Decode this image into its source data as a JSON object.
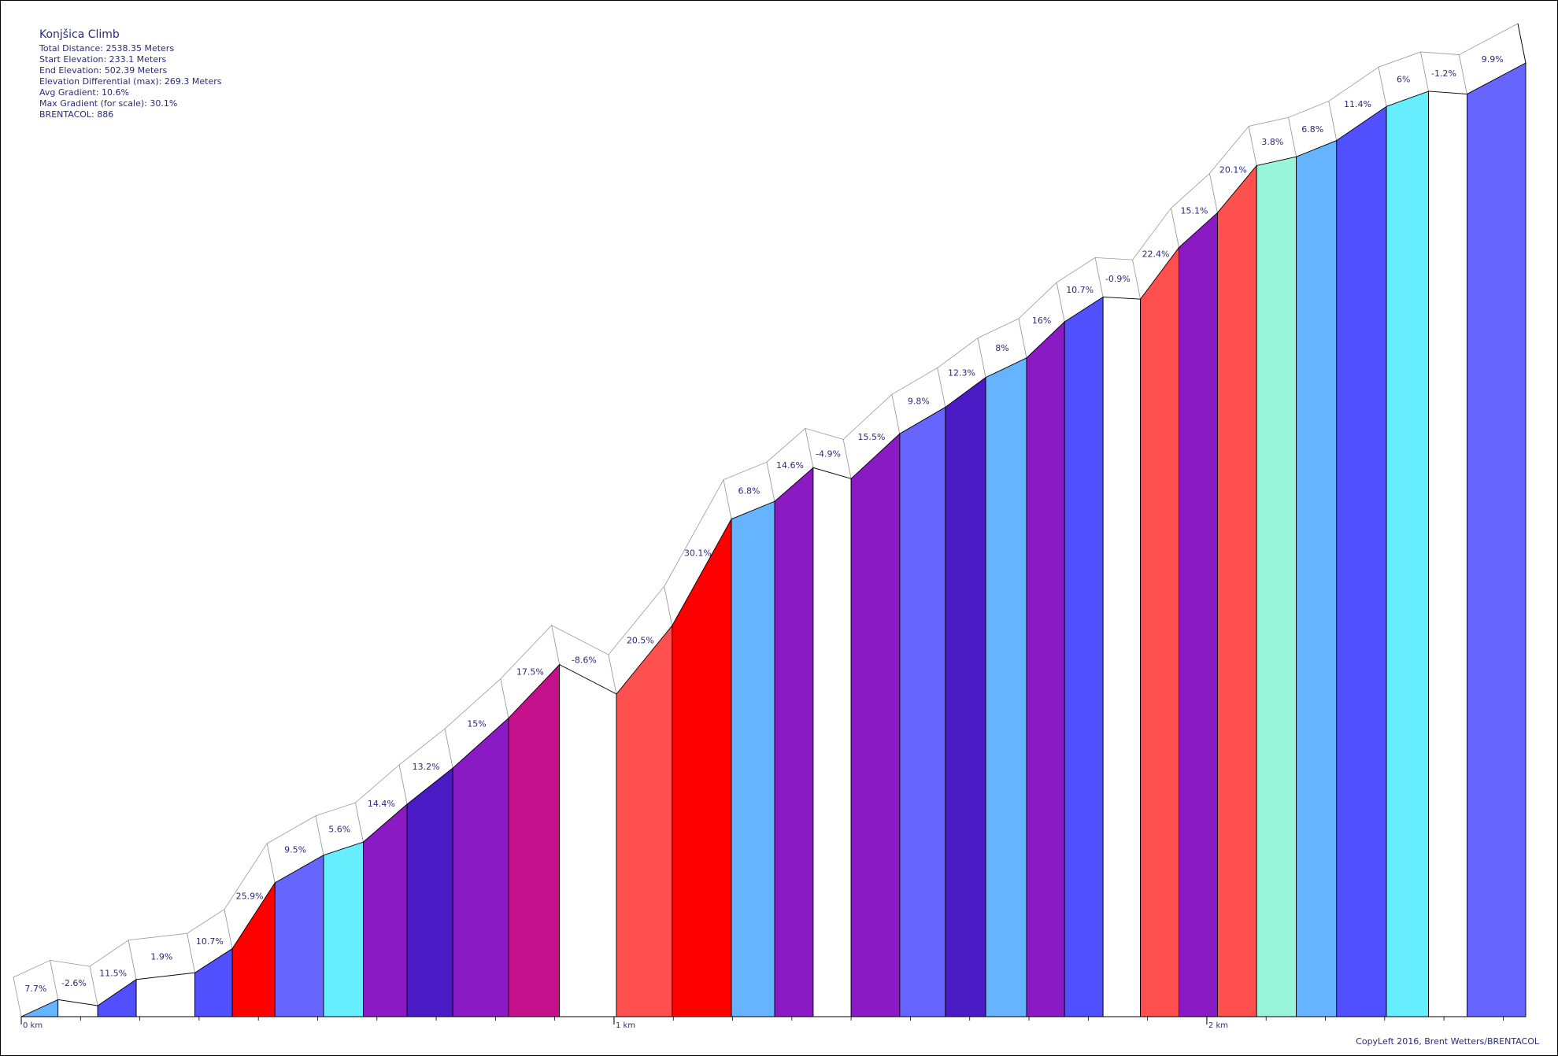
{
  "info": {
    "title": "Konjšica Climb",
    "total_distance": "Total Distance: 2538.35 Meters",
    "start_elevation": "Start Elevation: 233.1 Meters",
    "end_elevation": "End Elevation: 502.39 Meters",
    "elevation_differential": "Elevation Differential (max): 269.3 Meters",
    "avg_gradient": "Avg Gradient: 10.6%",
    "max_gradient": "Max Gradient (for scale): 30.1%",
    "brentacol": "BRENTACOL: 886"
  },
  "copyleft": "CopyLeft 2016, Brent Wetters/BRENTACOL",
  "chart_data": {
    "type": "area",
    "title": "Konjšica Climb",
    "x_unit": "km",
    "x_ticks": [
      {
        "value": 0,
        "label": "0 km"
      },
      {
        "value": 1,
        "label": "1 km"
      },
      {
        "value": 2,
        "label": "2 km"
      }
    ],
    "x_range_km": [
      0,
      2.538
    ],
    "y_range_m": [
      233.1,
      502.39
    ],
    "segments": [
      {
        "gradient": 7.7,
        "label": "7.7%",
        "color": "#66b3ff",
        "end_km": 0.062,
        "end_elev": 237.9
      },
      {
        "gradient": -2.6,
        "label": "-2.6%",
        "color": "#ffffff",
        "end_km": 0.129,
        "end_elev": 236.2
      },
      {
        "gradient": 11.5,
        "label": "11.5%",
        "color": "#5050ff",
        "end_km": 0.194,
        "end_elev": 243.6
      },
      {
        "gradient": 1.9,
        "label": "1.9%",
        "color": "#ffffff",
        "end_km": 0.293,
        "end_elev": 245.5
      },
      {
        "gradient": 10.7,
        "label": "10.7%",
        "color": "#5050ff",
        "end_km": 0.356,
        "end_elev": 252.3
      },
      {
        "gradient": 25.9,
        "label": "25.9%",
        "color": "#ff0000",
        "end_km": 0.428,
        "end_elev": 270.9
      },
      {
        "gradient": 9.5,
        "label": "9.5%",
        "color": "#6666ff",
        "end_km": 0.51,
        "end_elev": 278.7
      },
      {
        "gradient": 5.6,
        "label": "5.6%",
        "color": "#66eeff",
        "end_km": 0.577,
        "end_elev": 282.4
      },
      {
        "gradient": 14.4,
        "label": "14.4%",
        "color": "#8a1ac4",
        "end_km": 0.651,
        "end_elev": 293.1
      },
      {
        "gradient": 13.2,
        "label": "13.2%",
        "color": "#4a1ac4",
        "end_km": 0.728,
        "end_elev": 303.3
      },
      {
        "gradient": 15,
        "label": "15%",
        "color": "#8a1ac4",
        "end_km": 0.822,
        "end_elev": 317.4
      },
      {
        "gradient": 17.5,
        "label": "17.5%",
        "color": "#c4108a",
        "end_km": 0.908,
        "end_elev": 332.5
      },
      {
        "gradient": -8.6,
        "label": "-8.6%",
        "color": "#ffffff",
        "end_km": 1.004,
        "end_elev": 324.2
      },
      {
        "gradient": 20.5,
        "label": "20.5%",
        "color": "#ff5050",
        "end_km": 1.098,
        "end_elev": 343.5
      },
      {
        "gradient": 30.1,
        "label": "30.1%",
        "color": "#ff0000",
        "end_km": 1.198,
        "end_elev": 373.6
      },
      {
        "gradient": 6.8,
        "label": "6.8%",
        "color": "#66b3ff",
        "end_km": 1.271,
        "end_elev": 378.6
      },
      {
        "gradient": 14.6,
        "label": "14.6%",
        "color": "#8a1ac4",
        "end_km": 1.336,
        "end_elev": 388.1
      },
      {
        "gradient": -4.9,
        "label": "-4.9%",
        "color": "#ffffff",
        "end_km": 1.4,
        "end_elev": 385.0
      },
      {
        "gradient": 15.5,
        "label": "15.5%",
        "color": "#8a1ac4",
        "end_km": 1.482,
        "end_elev": 397.7
      },
      {
        "gradient": 9.8,
        "label": "9.8%",
        "color": "#6666ff",
        "end_km": 1.559,
        "end_elev": 405.2
      },
      {
        "gradient": 12.3,
        "label": "12.3%",
        "color": "#4a1ac4",
        "end_km": 1.627,
        "end_elev": 413.6
      },
      {
        "gradient": 8,
        "label": "8%",
        "color": "#66b3ff",
        "end_km": 1.696,
        "end_elev": 419.1
      },
      {
        "gradient": 16,
        "label": "16%",
        "color": "#8a1ac4",
        "end_km": 1.76,
        "end_elev": 429.3
      },
      {
        "gradient": 10.7,
        "label": "10.7%",
        "color": "#5050ff",
        "end_km": 1.825,
        "end_elev": 436.3
      },
      {
        "gradient": -0.9,
        "label": "-0.9%",
        "color": "#ffffff",
        "end_km": 1.888,
        "end_elev": 435.7
      },
      {
        "gradient": 22.4,
        "label": "22.4%",
        "color": "#ff5050",
        "end_km": 1.953,
        "end_elev": 450.3
      },
      {
        "gradient": 15.1,
        "label": "15.1%",
        "color": "#8a1ac4",
        "end_km": 2.018,
        "end_elev": 460.1
      },
      {
        "gradient": 20.1,
        "label": "20.1%",
        "color": "#ff5050",
        "end_km": 2.084,
        "end_elev": 473.4
      },
      {
        "gradient": 3.8,
        "label": "3.8%",
        "color": "#99f5d9",
        "end_km": 2.151,
        "end_elev": 475.9
      },
      {
        "gradient": 6.8,
        "label": "6.8%",
        "color": "#66b3ff",
        "end_km": 2.219,
        "end_elev": 480.5
      },
      {
        "gradient": 11.4,
        "label": "11.4%",
        "color": "#5050ff",
        "end_km": 2.303,
        "end_elev": 490.1
      },
      {
        "gradient": 6,
        "label": "6%",
        "color": "#66eeff",
        "end_km": 2.374,
        "end_elev": 494.4
      },
      {
        "gradient": -1.2,
        "label": "-1.2%",
        "color": "#ffffff",
        "end_km": 2.439,
        "end_elev": 493.6
      },
      {
        "gradient": 9.9,
        "label": "9.9%",
        "color": "#6666ff",
        "end_km": 2.538,
        "end_elev": 502.39
      }
    ]
  }
}
